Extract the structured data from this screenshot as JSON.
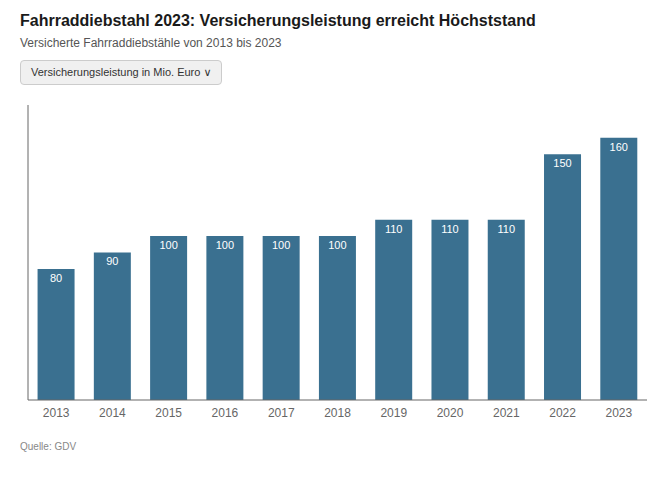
{
  "chart_data": {
    "type": "bar",
    "title": "Fahrraddiebstahl 2023: Versicherungsleistung erreicht Höchststand",
    "subtitle": "Versicherte Fahrraddiebstähle von 2013 bis 2023",
    "annotations": [
      "Versicherungsleistung in Mio. Euro ∨",
      "Quelle: GDV"
    ],
    "categories": [
      "2013",
      "2014",
      "2015",
      "2016",
      "2017",
      "2018",
      "2019",
      "2020",
      "2021",
      "2022",
      "2023"
    ],
    "values": [
      80,
      90,
      100,
      100,
      100,
      100,
      110,
      110,
      110,
      150,
      160
    ],
    "color": "#3a7090",
    "ylim": [
      0,
      180
    ],
    "grid": false,
    "data_labels": true,
    "tick_labels": "x"
  }
}
